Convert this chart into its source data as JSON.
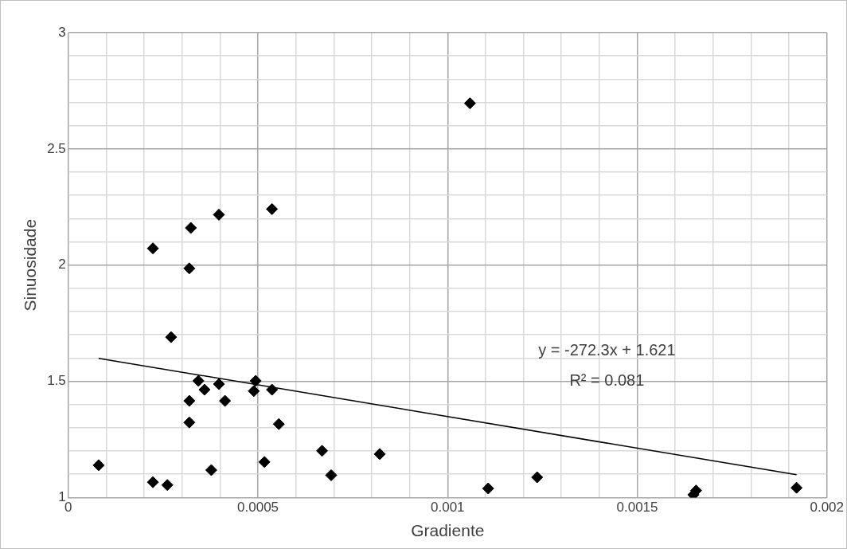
{
  "chart_data": {
    "type": "scatter",
    "xlabel": "Gradiente",
    "ylabel": "Sinuosidade",
    "annotations": [
      "y = -272.3x + 1.621",
      "R² = 0.081"
    ],
    "series": [
      {
        "type": "scatter",
        "color": "#000000",
        "marker": "diamond",
        "x": [
          8e-05,
          0.000223,
          0.000323,
          0.000397,
          0.000537,
          0.000319,
          0.000271,
          0.000343,
          0.000359,
          0.000397,
          0.000494,
          0.000489,
          0.000537,
          0.000319,
          0.000413,
          0.000319,
          0.000555,
          0.000669,
          0.000517,
          0.000377,
          0.000223,
          0.000261,
          0.000821,
          0.000693,
          0.001059,
          0.001107,
          0.001236,
          0.001648,
          0.001655,
          0.00192
        ],
        "values": [
          1.139,
          2.072,
          2.16,
          2.217,
          2.241,
          1.986,
          1.69,
          1.502,
          1.464,
          1.488,
          1.502,
          1.458,
          1.464,
          1.416,
          1.416,
          1.323,
          1.316,
          1.201,
          1.153,
          1.118,
          1.066,
          1.054,
          1.187,
          1.096,
          2.696,
          1.039,
          1.087,
          1.012,
          1.03,
          1.042
        ]
      },
      {
        "type": "line",
        "color": "#000000",
        "marker": "none",
        "x": [
          8e-05,
          0.00192
        ],
        "values": [
          1.599,
          1.098
        ]
      }
    ],
    "xlim": [
      0,
      0.002
    ],
    "xticks": [
      0,
      {
        "value": 0.0001,
        "label": null
      },
      {
        "value": 0.0002,
        "label": null
      },
      {
        "value": 0.0003,
        "label": null
      },
      {
        "value": 0.0004,
        "label": null
      },
      0.0005,
      {
        "value": 0.0006,
        "label": null
      },
      {
        "value": 0.0007,
        "label": null
      },
      {
        "value": 0.0008,
        "label": null
      },
      {
        "value": 0.0009,
        "label": null
      },
      0.001,
      {
        "value": 0.0011,
        "label": null
      },
      {
        "value": 0.0012,
        "label": null
      },
      {
        "value": 0.0013,
        "label": null
      },
      {
        "value": 0.0014,
        "label": null
      },
      0.0015,
      {
        "value": 0.0016,
        "label": null
      },
      {
        "value": 0.0017,
        "label": null
      },
      {
        "value": 0.0018,
        "label": null
      },
      {
        "value": 0.0019,
        "label": null
      },
      0.002
    ],
    "ylim": [
      1,
      3
    ],
    "yticks": [
      1,
      {
        "value": 1.1,
        "label": null
      },
      {
        "value": 1.2,
        "label": null
      },
      {
        "value": 1.3,
        "label": null
      },
      {
        "value": 1.4,
        "label": null
      },
      1.5,
      {
        "value": 1.6,
        "label": null
      },
      {
        "value": 1.7,
        "label": null
      },
      {
        "value": 1.8,
        "label": null
      },
      {
        "value": 1.9,
        "label": null
      },
      2,
      {
        "value": 2.1,
        "label": null
      },
      {
        "value": 2.2,
        "label": null
      },
      {
        "value": 2.3,
        "label": null
      },
      {
        "value": 2.4,
        "label": null
      },
      2.5,
      {
        "value": 2.6,
        "label": null
      },
      {
        "value": 2.7,
        "label": null
      },
      {
        "value": 2.8,
        "label": null
      },
      {
        "value": 2.9,
        "label": null
      },
      3
    ],
    "grid": true,
    "legend": false
  }
}
